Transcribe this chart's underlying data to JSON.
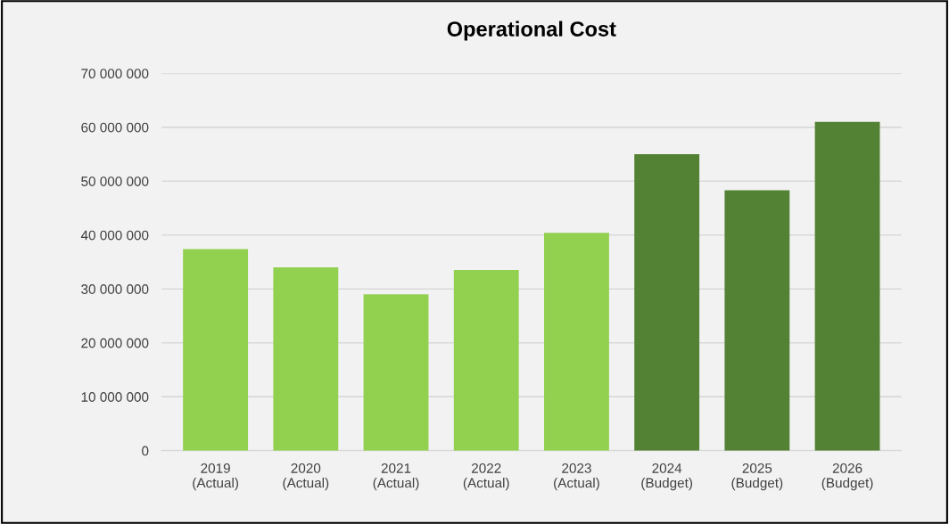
{
  "chart_data": {
    "type": "bar",
    "title": "Operational Cost",
    "categories": [
      "2019\n(Actual)",
      "2020\n(Actual)",
      "2021\n(Actual)",
      "2022\n(Actual)",
      "2023\n(Actual)",
      "2024\n(Budget)",
      "2025\n(Budget)",
      "2026\n(Budget)"
    ],
    "values": [
      37400000,
      34000000,
      29000000,
      33500000,
      40400000,
      55000000,
      48300000,
      61000000
    ],
    "colors": [
      "#92d050",
      "#92d050",
      "#92d050",
      "#92d050",
      "#92d050",
      "#548235",
      "#548235",
      "#548235"
    ],
    "ylim": [
      0,
      70000000
    ],
    "yticks": [
      {
        "value": 0,
        "label": "0"
      },
      {
        "value": 10000000,
        "label": "10 000 000"
      },
      {
        "value": 20000000,
        "label": "20 000 000"
      },
      {
        "value": 30000000,
        "label": "30 000 000"
      },
      {
        "value": 40000000,
        "label": "40 000 000"
      },
      {
        "value": 50000000,
        "label": "50 000 000"
      },
      {
        "value": 60000000,
        "label": "60 000 000"
      },
      {
        "value": 70000000,
        "label": "70 000 000"
      }
    ],
    "grid": "y"
  }
}
